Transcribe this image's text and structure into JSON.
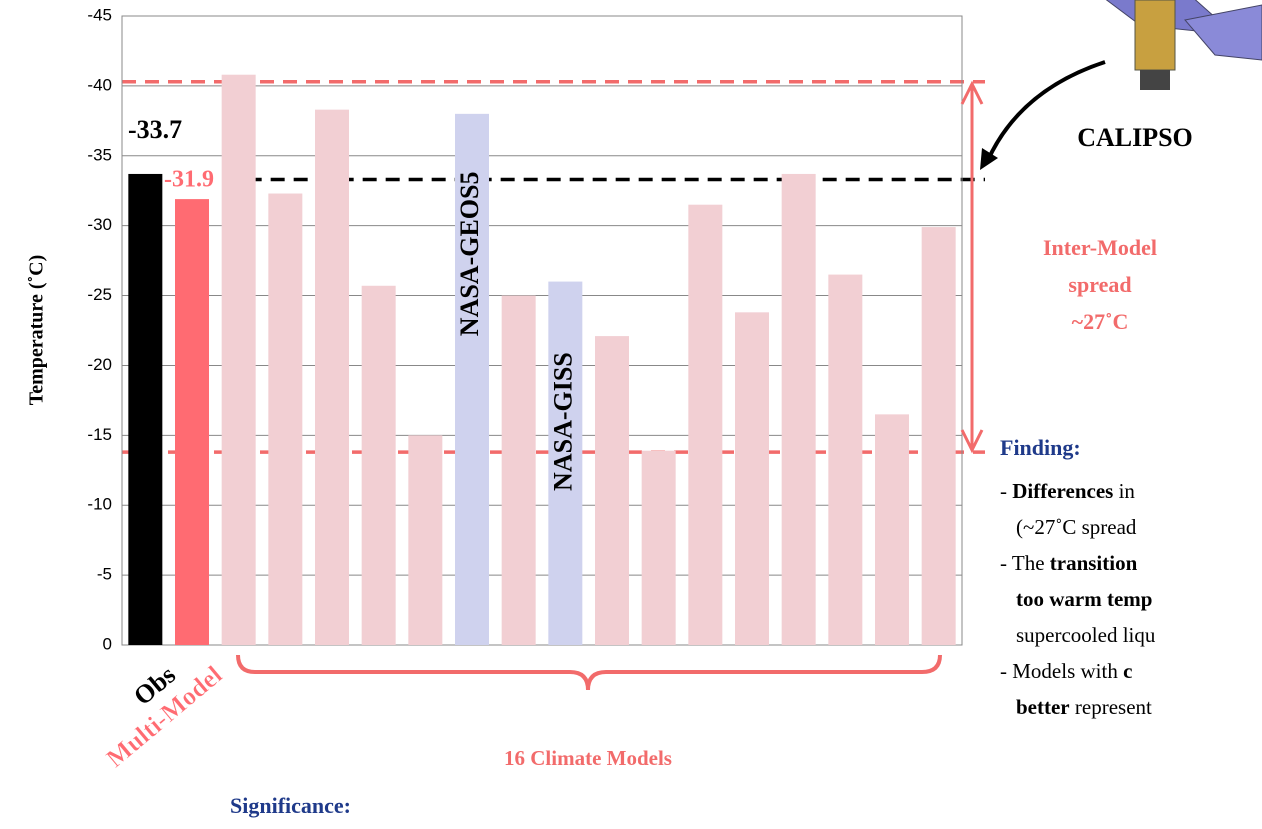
{
  "chart_data": {
    "type": "bar",
    "ylabel": "Temperature (˚C)",
    "categories": [
      "Obs",
      "Multi-Model",
      null,
      null,
      null,
      null,
      null,
      "NASA-GEOS5",
      null,
      "NASA-GISS",
      null,
      null,
      null,
      null,
      null,
      null,
      null,
      null
    ],
    "values": [
      -33.7,
      -31.9,
      -40.8,
      -32.3,
      -38.3,
      -25.7,
      -15.0,
      -38.0,
      -25.0,
      -26.0,
      -22.1,
      -13.9,
      -31.5,
      -23.8,
      -33.7,
      -26.5,
      -16.5,
      -29.9
    ],
    "colors": [
      "#000000",
      "#ff6b72",
      "#f2cfd3",
      "#f2cfd3",
      "#f2cfd3",
      "#f2cfd3",
      "#f2cfd3",
      "#cfd2ee",
      "#f2cfd3",
      "#cfd2ee",
      "#f2cfd3",
      "#f2cfd3",
      "#f2cfd3",
      "#f2cfd3",
      "#f2cfd3",
      "#f2cfd3",
      "#f2cfd3",
      "#f2cfd3"
    ],
    "ylim": [
      0,
      -45
    ],
    "yticks": [
      0,
      -5,
      -10,
      -15,
      -20,
      -25,
      -30,
      -35,
      -40,
      -45
    ],
    "grid": true,
    "reference_lines": [
      {
        "value": -40.3,
        "color": "#f26b6b"
      },
      {
        "value": -13.8,
        "color": "#f26b6b"
      },
      {
        "value": -33.3,
        "color": "#000000"
      }
    ],
    "group_label": "16 Climate Models",
    "spread_label": [
      "Inter-Model",
      "spread",
      "~27˚C"
    ],
    "satellite_label": "CALIPSO"
  },
  "finding": {
    "title": "Finding:",
    "lines": [
      [
        "- ",
        "Differences",
        " in"
      ],
      [
        "(~27˚C spread"
      ],
      [
        "- The ",
        "transition"
      ],
      [
        "too warm temp"
      ],
      [
        "supercooled liqu"
      ],
      [
        "- Models with ",
        "c"
      ],
      [
        "better",
        " represent"
      ]
    ]
  },
  "significance": {
    "title": "Significance:"
  }
}
